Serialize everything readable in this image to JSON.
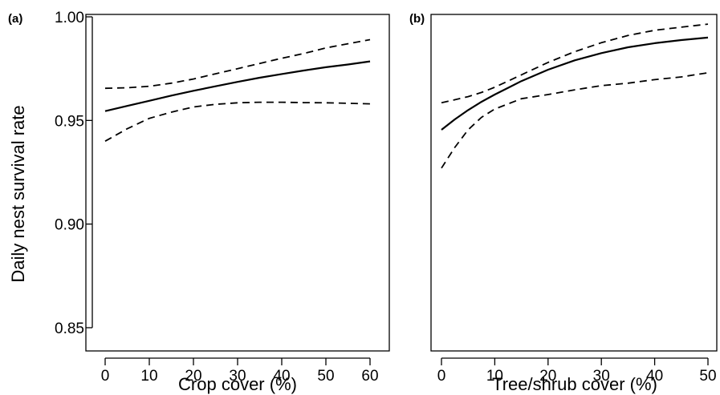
{
  "figure": {
    "ylabel": "Daily nest survival rate"
  },
  "chart_data": [
    {
      "type": "line",
      "panel_label": "(a)",
      "xlabel": "Crop cover (%)",
      "ylabel": "Daily nest survival rate",
      "xlim": [
        0,
        60
      ],
      "ylim": [
        0.85,
        1.0
      ],
      "xticks": [
        0,
        10,
        20,
        30,
        40,
        50,
        60
      ],
      "xtick_labels": [
        "0",
        "10",
        "20",
        "30",
        "40",
        "50",
        "60"
      ],
      "yticks": [
        0.85,
        0.9,
        0.95,
        1.0
      ],
      "ytick_labels": [
        "0.85",
        "0.90",
        "0.95",
        "1.00"
      ],
      "grid": false,
      "x": [
        0,
        5,
        10,
        15,
        20,
        25,
        30,
        35,
        40,
        45,
        50,
        55,
        60
      ],
      "series": [
        {
          "style": "solid",
          "values": [
            0.9545,
            0.957,
            0.9595,
            0.962,
            0.9643,
            0.9665,
            0.9686,
            0.9706,
            0.9724,
            0.9741,
            0.9757,
            0.977,
            0.9785
          ]
        },
        {
          "style": "dashed",
          "values": [
            0.9655,
            0.9658,
            0.9665,
            0.968,
            0.97,
            0.9725,
            0.975,
            0.9775,
            0.98,
            0.9823,
            0.985,
            0.987,
            0.989
          ]
        },
        {
          "style": "dashed",
          "values": [
            0.94,
            0.946,
            0.951,
            0.954,
            0.9565,
            0.9578,
            0.9585,
            0.9588,
            0.9588,
            0.9586,
            0.9585,
            0.9583,
            0.958
          ]
        }
      ]
    },
    {
      "type": "line",
      "panel_label": "(b)",
      "xlabel": "Tree/shrub cover (%)",
      "ylabel": "",
      "xlim": [
        0,
        50
      ],
      "ylim": [
        0.85,
        1.0
      ],
      "xticks": [
        0,
        10,
        20,
        30,
        40,
        50
      ],
      "xtick_labels": [
        "0",
        "10",
        "20",
        "30",
        "40",
        "50"
      ],
      "yticks": [],
      "ytick_labels": [],
      "grid": false,
      "x": [
        0,
        2.5,
        5,
        7.5,
        10,
        15,
        20,
        25,
        30,
        35,
        40,
        45,
        50
      ],
      "series": [
        {
          "style": "solid",
          "values": [
            0.9455,
            0.9505,
            0.955,
            0.959,
            0.9625,
            0.969,
            0.9745,
            0.979,
            0.9825,
            0.9853,
            0.9873,
            0.9888,
            0.99
          ]
        },
        {
          "style": "dashed",
          "values": [
            0.9585,
            0.96,
            0.9615,
            0.9635,
            0.966,
            0.972,
            0.978,
            0.9832,
            0.9875,
            0.991,
            0.9935,
            0.995,
            0.9965
          ]
        },
        {
          "style": "dashed",
          "values": [
            0.927,
            0.937,
            0.9455,
            0.9515,
            0.9555,
            0.9605,
            0.9625,
            0.9648,
            0.9668,
            0.968,
            0.9697,
            0.971,
            0.973
          ]
        }
      ]
    }
  ]
}
